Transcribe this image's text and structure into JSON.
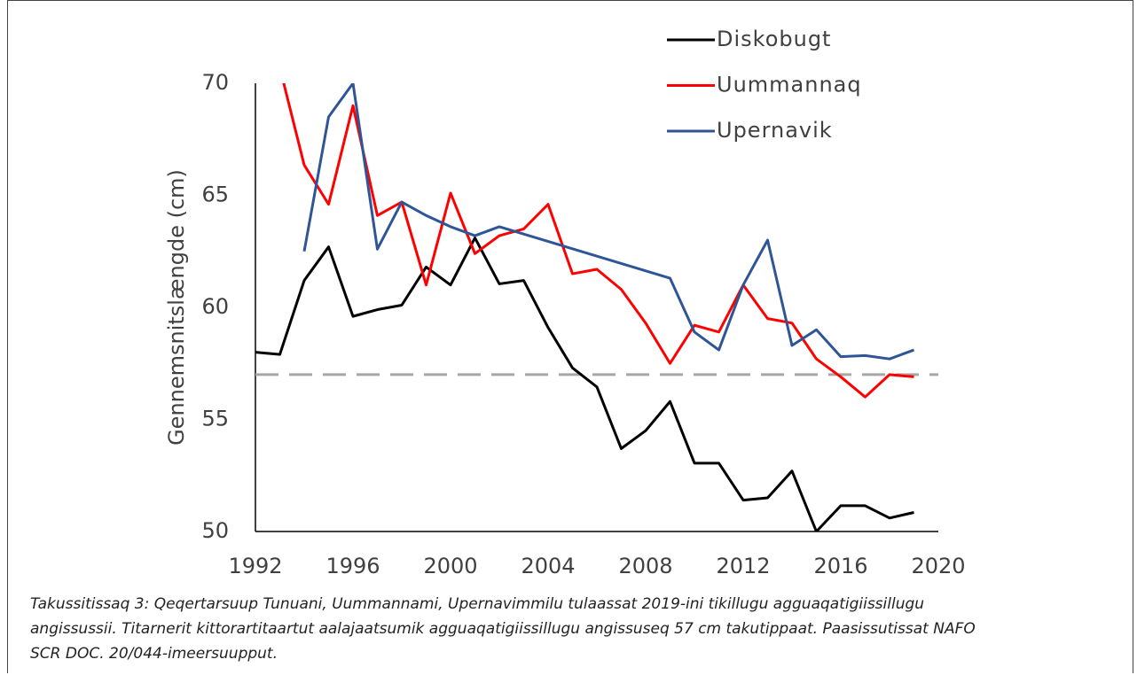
{
  "chart_data": {
    "type": "line",
    "y_label": "Gennemsnitslængde  (cm)",
    "xlim": [
      1992,
      2020
    ],
    "xticks": [
      1992,
      1996,
      2000,
      2004,
      2008,
      2012,
      2016,
      2020
    ],
    "ylim": [
      50,
      70
    ],
    "yticks": [
      50,
      55,
      60,
      65,
      70
    ],
    "grid": false,
    "legend": "top-right",
    "reference_line": {
      "value": 57,
      "color": "#a6a6a6"
    },
    "series": [
      {
        "name": "Diskobugt",
        "color": "#000000",
        "x": [
          1992,
          1993,
          1994,
          1995,
          1996,
          1997,
          1998,
          1999,
          2000,
          2001,
          2002,
          2003,
          2004,
          2005,
          2006,
          2007,
          2008,
          2009,
          2010,
          2011,
          2012,
          2013,
          2014,
          2015,
          2016,
          2017,
          2018,
          2019
        ],
        "values": [
          58.0,
          57.9,
          61.2,
          62.7,
          59.6,
          59.9,
          60.1,
          61.8,
          61.0,
          63.1,
          61.05,
          61.2,
          59.1,
          57.3,
          56.45,
          53.7,
          54.5,
          55.8,
          53.05,
          53.05,
          51.4,
          51.5,
          52.7,
          50.0,
          51.15,
          51.15,
          50.6,
          50.85
        ]
      },
      {
        "name": "Uummannaq",
        "color": "#ff0000",
        "x": [
          1993,
          1994,
          1995,
          1996,
          1997,
          1998,
          1999,
          2000,
          2001,
          2002,
          2003,
          2004,
          2005,
          2006,
          2007,
          2008,
          2009,
          2010,
          2011,
          2012,
          2013,
          2014,
          2015,
          2016,
          2017,
          2018,
          2019
        ],
        "values": [
          70.7,
          66.35,
          64.6,
          69.0,
          64.1,
          64.7,
          61.0,
          65.1,
          62.4,
          63.2,
          63.5,
          64.6,
          61.5,
          61.7,
          60.8,
          59.3,
          57.5,
          59.2,
          58.9,
          61.0,
          59.5,
          59.3,
          57.7,
          56.9,
          56.0,
          57.0,
          56.9
        ]
      },
      {
        "name": "Upernavik",
        "color": "#2f5597",
        "x": [
          1994,
          1995,
          1996,
          1997,
          1998,
          1999,
          2000,
          2001,
          2002,
          2009,
          2010,
          2011,
          2012,
          2013,
          2014,
          2015,
          2016,
          2017,
          2018,
          2019
        ],
        "values": [
          62.5,
          68.5,
          70.0,
          62.6,
          64.7,
          64.1,
          63.6,
          63.2,
          63.6,
          61.3,
          58.9,
          58.1,
          61.0,
          63.0,
          58.3,
          59.0,
          57.8,
          57.85,
          57.7,
          58.1
        ]
      }
    ]
  },
  "caption": [
    "Takussitissaq 3: Qeqertarsuup Tunuani, Uummannami, Upernavimmilu tulaassat 2019-ini tikillugu agguaqatigiissillugu",
    "angissussii. Titarnerit kittorartitaartut aalajaatsumik agguaqatigiissillugu angissuseq 57 cm takutippaat. Paasissutissat NAFO",
    "SCR DOC. 20/044-imeersuupput."
  ]
}
